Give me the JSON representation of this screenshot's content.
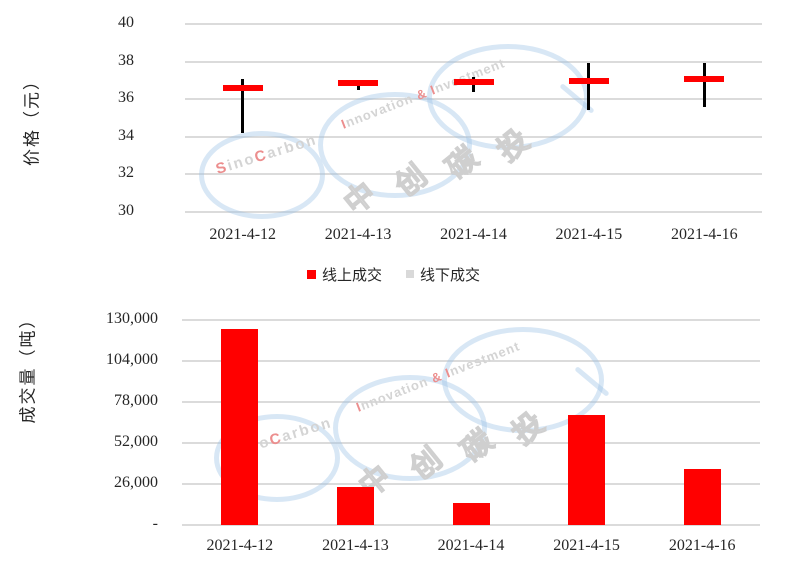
{
  "watermark": {
    "brand": "SinoCarbon",
    "tagline": "Innovation & Investment",
    "cn_text": "中创碳投"
  },
  "legend": {
    "items": [
      {
        "label": "线上成交",
        "color": "#FF0000"
      },
      {
        "label": "线下成交",
        "color": "#D9D9D9"
      }
    ]
  },
  "chart_data": [
    {
      "type": "candlestick",
      "title": "",
      "ylabel": "价格（元）",
      "ylim": [
        30,
        40
      ],
      "ytick_step": 2,
      "grid": true,
      "yticks": [
        {
          "value": 40,
          "label": "40"
        },
        {
          "value": 38,
          "label": "38"
        },
        {
          "value": 36,
          "label": "36"
        },
        {
          "value": 34,
          "label": "34"
        },
        {
          "value": 32,
          "label": "32"
        },
        {
          "value": 30,
          "label": "30"
        }
      ],
      "categories": [
        "2021-4-12",
        "2021-4-13",
        "2021-4-14",
        "2021-4-15",
        "2021-4-16"
      ],
      "series": [
        {
          "name": "线上成交",
          "style": "price-dash",
          "color": "#FF0000",
          "values": [
            36.6,
            36.85,
            36.9,
            36.95,
            37.05
          ]
        },
        {
          "name": "线下成交",
          "style": "high-low-wick",
          "color": "#000000",
          "high": [
            37.05,
            37.0,
            37.2,
            37.95,
            37.9
          ],
          "low": [
            34.2,
            36.5,
            36.4,
            35.45,
            35.6
          ]
        }
      ],
      "legend_position": "bottom"
    },
    {
      "type": "bar",
      "title": "",
      "ylabel": "成交量（吨）",
      "ylim": [
        0,
        130000
      ],
      "ytick_step": 26000,
      "grid": true,
      "bar_color": "#FF0000",
      "yticks": [
        {
          "value": 130000,
          "label": "130,000"
        },
        {
          "value": 104000,
          "label": "104,000"
        },
        {
          "value": 78000,
          "label": "78,000"
        },
        {
          "value": 52000,
          "label": "52,000"
        },
        {
          "value": 26000,
          "label": "26,000"
        },
        {
          "value": 0,
          "label": "-"
        }
      ],
      "categories": [
        "2021-4-12",
        "2021-4-13",
        "2021-4-14",
        "2021-4-15",
        "2021-4-16"
      ],
      "values": [
        124300,
        24300,
        14100,
        69800,
        35300
      ]
    }
  ],
  "colors": {
    "online_red": "#FF0000",
    "offline_gray": "#D9D9D9",
    "gridline": "#DBDBDB",
    "text": "#262626",
    "watermark_blue": "#98C1E5",
    "watermark_gray": "#D4D4D4",
    "watermark_red": "#EC8E8E"
  }
}
